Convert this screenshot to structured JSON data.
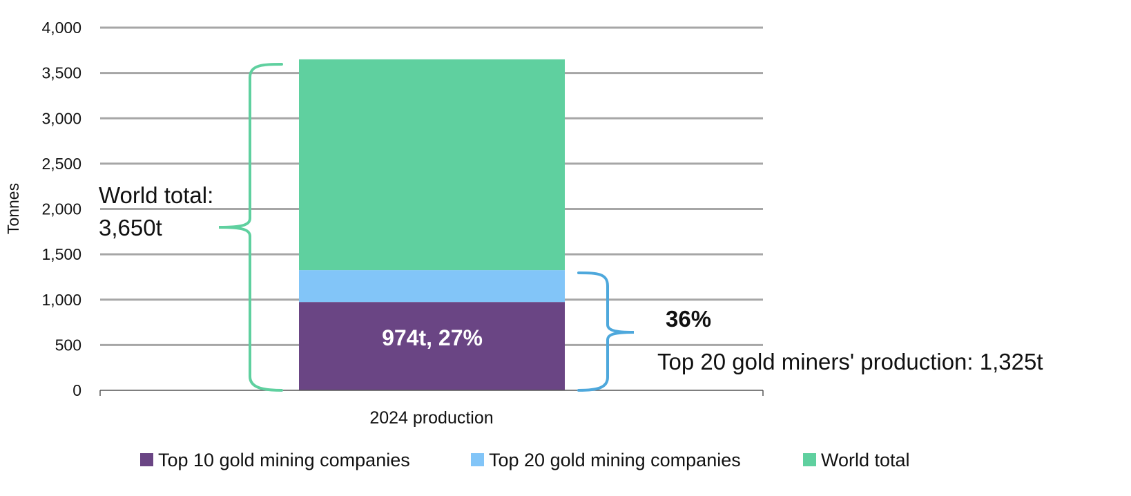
{
  "chart_data": {
    "type": "bar",
    "stacked": true,
    "categories": [
      "2024 production"
    ],
    "series": [
      {
        "name": "Top 10 gold mining companies",
        "values": [
          974
        ],
        "color": "#6a4584"
      },
      {
        "name": "Top 20 gold mining companies",
        "values": [
          351
        ],
        "color": "#82c5f8"
      },
      {
        "name": "World total",
        "values": [
          2325
        ],
        "color": "#5fd09f"
      }
    ],
    "ylabel": "Tonnes",
    "ylim": [
      0,
      4000
    ],
    "yticks": [
      0,
      500,
      1000,
      1500,
      2000,
      2500,
      3000,
      3500,
      4000
    ],
    "ytick_labels": [
      "0",
      "500",
      "1,000",
      "1,500",
      "2,000",
      "2,500",
      "3,000",
      "3,500",
      "4,000"
    ],
    "grid": true,
    "legend_position": "bottom",
    "annotations": {
      "bar_label": "974t, 27%",
      "world_total_line1": "World total:",
      "world_total_line2": "3,650t",
      "world_total_value": 3650,
      "top20_percent": "36%",
      "top20_text": "Top 20 gold miners' production: 1,325t",
      "top20_value": 1325
    }
  },
  "colors": {
    "grid": "#a6a6a6",
    "brace_world": "#5fd09f",
    "brace_top20": "#4ea8dc"
  }
}
